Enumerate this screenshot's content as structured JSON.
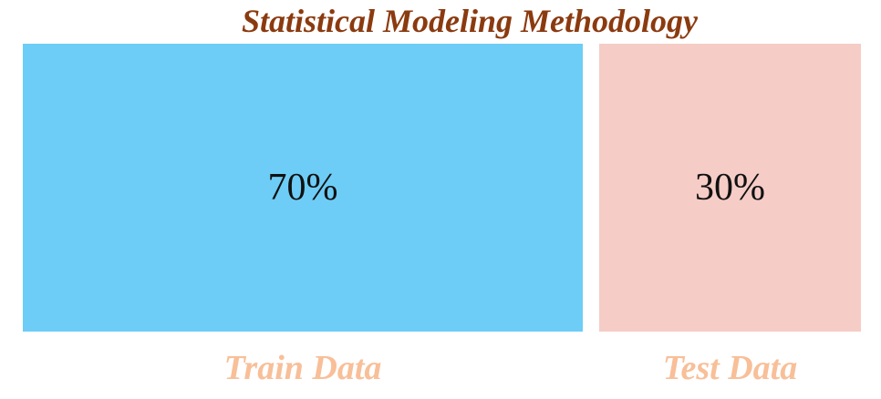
{
  "title": "Statistical Modeling Methodology",
  "colors": {
    "title": "#8b3a0f",
    "train_fill": "#6dcdf6",
    "test_fill": "#f6ccc6",
    "label": "#f8bf98",
    "text": "#111111"
  },
  "segments": [
    {
      "id": "train",
      "percent_label": "70%",
      "share": 0.7,
      "label": "Train Data"
    },
    {
      "id": "test",
      "percent_label": "30%",
      "share": 0.3,
      "label": "Test Data"
    }
  ]
}
